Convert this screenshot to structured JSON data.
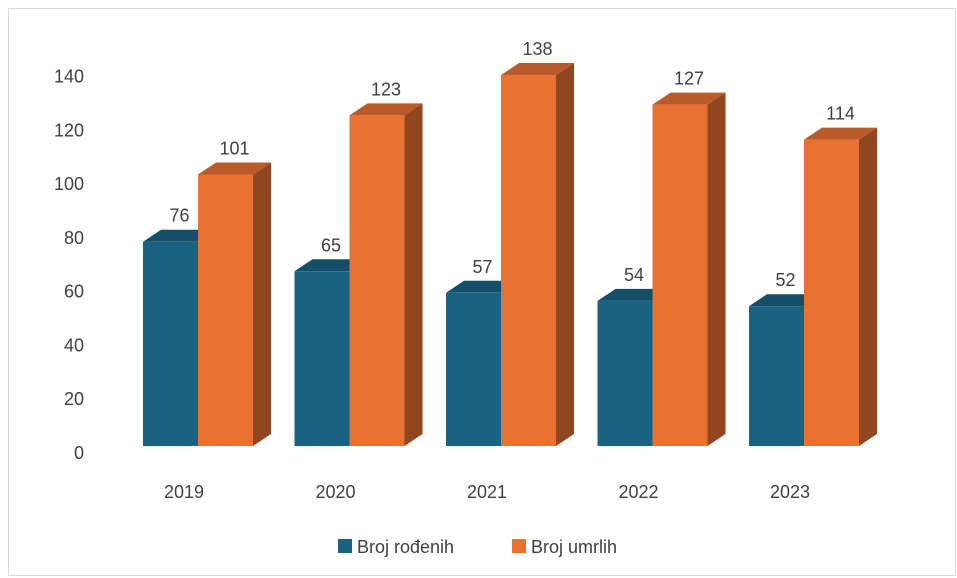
{
  "chart_data": {
    "type": "bar",
    "title": "",
    "xlabel": "",
    "ylabel": "",
    "categories": [
      "2019",
      "2020",
      "2021",
      "2022",
      "2023"
    ],
    "series": [
      {
        "name": "Broj rođenih",
        "values": [
          76,
          65,
          57,
          54,
          52
        ],
        "color": "#1a6282"
      },
      {
        "name": "Broj umrlih",
        "values": [
          101,
          123,
          138,
          127,
          114
        ],
        "color": "#e97132"
      }
    ],
    "ylim": [
      0,
      140
    ],
    "yticks": [
      "0",
      "20",
      "40",
      "60",
      "80",
      "100",
      "120",
      "140"
    ],
    "grid": false,
    "three_d": true,
    "legend_position": "bottom"
  }
}
